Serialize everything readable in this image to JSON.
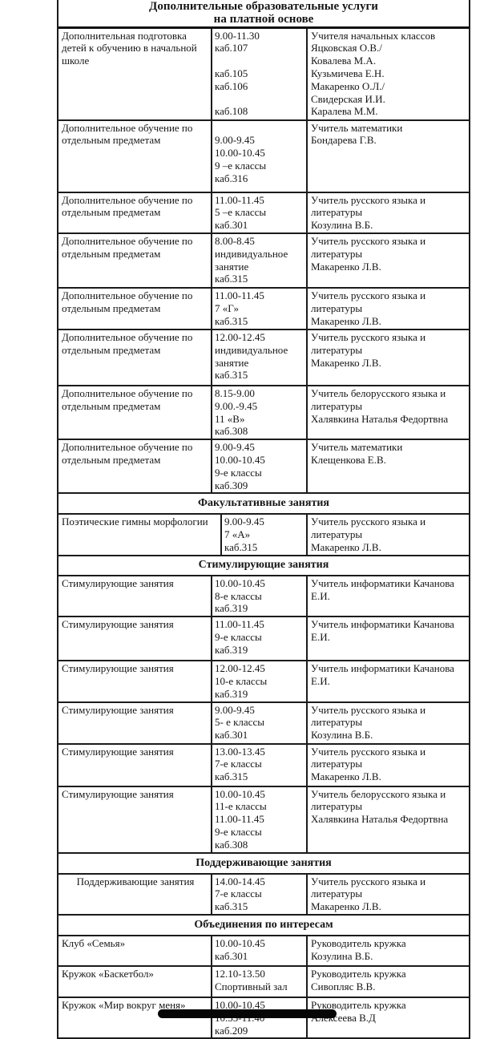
{
  "document": {
    "title_line1": "Дополнительные образовательные услуги",
    "title_line2": "на платной основе",
    "colors": {
      "background": "#ffffff",
      "text": "#161616",
      "border": "#1b1b1b",
      "home_indicator": "#060606"
    },
    "columns": {
      "service_width": 192,
      "time_width": 119
    },
    "rows": [
      {
        "kind": "data",
        "h": 115,
        "service": [
          "Дополнительная подготовка",
          "детей к обучению в начальной",
          "школе"
        ],
        "time": [
          "9.00-11.30",
          "каб.107",
          "",
          "каб.105",
          "каб.106",
          "",
          "каб.108"
        ],
        "teacher": [
          "Учителя начальных классов",
          "Яцковская О.В./",
          "Ковалева М.А.",
          "Кузьмичева Е.Н.",
          "Макаренко О.Л./",
          "Свидерская И.И.",
          "Каралева М.М."
        ]
      },
      {
        "kind": "data",
        "h": 90,
        "service": [
          "Дополнительное обучение по",
          "отдельным предметам"
        ],
        "time": [
          "",
          "9.00-9.45",
          "10.00-10.45",
          "9 –е классы",
          "каб.316"
        ],
        "teacher": [
          "Учитель математики",
          "Бондарева Г.В."
        ]
      },
      {
        "kind": "data",
        "h": 50,
        "service": [
          "Дополнительное обучение по",
          "отдельным предметам"
        ],
        "time": [
          "11.00-11.45",
          "5 –е классы",
          "каб.301"
        ],
        "teacher": [
          "Учитель русского языка и",
          "литературы",
          "Козулина В.Б."
        ]
      },
      {
        "kind": "data",
        "h": 68,
        "service": [
          "Дополнительное обучение по",
          "отдельным предметам"
        ],
        "time": [
          "8.00-8.45",
          "индивидуальное",
          "занятие",
          "каб.315"
        ],
        "teacher": [
          "Учитель русского языка и",
          "литературы",
          "Макаренко Л.В."
        ]
      },
      {
        "kind": "data",
        "h": 52,
        "service": [
          "Дополнительное обучение по",
          "отдельным предметам"
        ],
        "time": [
          "11.00-11.45",
          "7 «Г»",
          "каб.315"
        ],
        "teacher": [
          "Учитель русского языка и",
          "литературы",
          "Макаренко Л.В."
        ]
      },
      {
        "kind": "data",
        "h": 70,
        "service": [
          "Дополнительное обучение по",
          "отдельным предметам"
        ],
        "time": [
          "12.00-12.45",
          "индивидуальное",
          "занятие",
          "каб.315"
        ],
        "teacher": [
          "Учитель русского языка и",
          "литературы",
          "Макаренко Л.В."
        ]
      },
      {
        "kind": "data",
        "h": 67,
        "service": [
          "Дополнительное обучение по",
          "отдельным предметам"
        ],
        "time": [
          "8.15-9.00",
          "9.00.-9.45",
          "11 «В»",
          "каб.308"
        ],
        "teacher": [
          "Учитель белорусского языка и",
          "литературы",
          "Халявкина Наталья Федортвна"
        ]
      },
      {
        "kind": "data",
        "h": 63,
        "service": [
          "Дополнительное обучение по",
          "отдельным предметам"
        ],
        "time": [
          "9.00-9.45",
          "10.00-10.45",
          "9-е классы",
          "каб.309"
        ],
        "teacher": [
          "Учитель математики",
          "Клещенкова Е.В."
        ]
      },
      {
        "kind": "section",
        "h": 26,
        "label": "Факультативные занятия"
      },
      {
        "kind": "data",
        "h": 50,
        "c1w": 204,
        "c2w": 107,
        "service": [
          "Поэтические гимны морфологии"
        ],
        "time": [
          "9.00-9.45",
          "7 «А»",
          "каб.315"
        ],
        "teacher": [
          "Учитель русского языка и",
          "литературы",
          "Макаренко Л.В."
        ]
      },
      {
        "kind": "section",
        "h": 25,
        "label": "Стимулирующие занятия"
      },
      {
        "kind": "data",
        "h": 47,
        "service": [
          "Стимулирующие занятия"
        ],
        "time": [
          "10.00-10.45",
          "8-е классы",
          "каб.319"
        ],
        "teacher": [
          "Учитель информатики Качанова",
          "Е.И."
        ]
      },
      {
        "kind": "data",
        "h": 55,
        "service": [
          "Стимулирующие занятия"
        ],
        "time": [
          "11.00-11.45",
          "9-е классы",
          "каб.319"
        ],
        "teacher": [
          "Учитель информатики Качанова",
          "Е.И."
        ]
      },
      {
        "kind": "data",
        "h": 48,
        "service": [
          "Стимулирующие занятия"
        ],
        "time": [
          "12.00-12.45",
          "10-е классы",
          "каб.319"
        ],
        "teacher": [
          "Учитель информатики Качанова",
          "Е.И."
        ]
      },
      {
        "kind": "data",
        "h": 52,
        "service": [
          "Стимулирующие занятия"
        ],
        "time": [
          "9.00-9.45",
          "5- е классы",
          "каб.301"
        ],
        "teacher": [
          "Учитель русского языка и",
          "литературы",
          "Козулина В.Б."
        ]
      },
      {
        "kind": "data",
        "h": 53,
        "service": [
          "Стимулирующие занятия"
        ],
        "time": [
          "13.00-13.45",
          "7-е классы",
          "каб.315"
        ],
        "teacher": [
          "Учитель русского языка и",
          "литературы",
          "Макаренко Л.В."
        ]
      },
      {
        "kind": "data",
        "h": 82,
        "service": [
          "Стимулирующие занятия"
        ],
        "time": [
          "10.00-10.45",
          "11-е классы",
          "11.00-11.45",
          "9-е классы",
          "каб.308"
        ],
        "teacher": [
          "Учитель белорусского языка и",
          "литературы",
          "Халявкина Наталья Федортвна"
        ]
      },
      {
        "kind": "section",
        "h": 26,
        "label": "Поддерживающие занятия"
      },
      {
        "kind": "data",
        "h": 48,
        "center": true,
        "service": [
          "Поддерживающие занятия"
        ],
        "time": [
          "14.00-14.45",
          "7-е классы",
          "каб.315"
        ],
        "teacher": [
          "Учитель русского языка и",
          "литературы",
          "Макаренко Л.В."
        ]
      },
      {
        "kind": "section",
        "h": 26,
        "label": "Объединения по интересам"
      },
      {
        "kind": "data",
        "h": 38,
        "service": [
          "Клуб «Семья»"
        ],
        "time": [
          "10.00-10.45",
          "каб.301"
        ],
        "teacher": [
          "Руководитель кружка",
          "Козулина В.Б."
        ]
      },
      {
        "kind": "data",
        "h": 39,
        "service": [
          "Кружок «Баскетбол»"
        ],
        "time": [
          "12.10-13.50",
          "Спортивный зал"
        ],
        "teacher": [
          "Руководитель кружка",
          "Сивопляс В.В."
        ]
      },
      {
        "kind": "data",
        "h": 45,
        "service": [
          "Кружок «Мир вокруг меня»"
        ],
        "time": [
          "10.00-10.45",
          "10.55-11.40",
          "каб.209"
        ],
        "teacher": [
          "Руководитель кружка",
          "Алексеева В.Д"
        ]
      }
    ]
  }
}
